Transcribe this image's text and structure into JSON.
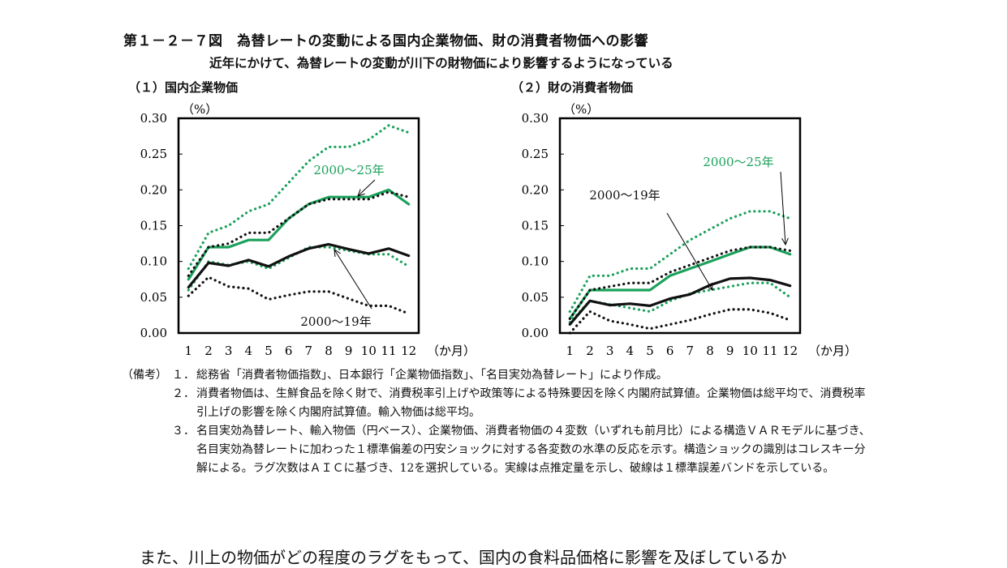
{
  "figure": {
    "title": "第１－２－７図　為替レートの変動による国内企業物価、財の消費者物価への影響",
    "subtitle": "近年にかけて、為替レートの変動が川下の財物価により影響するようになっている"
  },
  "colors": {
    "green": "#1aa05a",
    "black": "#111111"
  },
  "chart_data": [
    {
      "type": "line",
      "panel_title": "（１）国内企業物価",
      "y_unit": "（%）",
      "x_unit": "（か月）",
      "x": [
        1,
        2,
        3,
        4,
        5,
        6,
        7,
        8,
        9,
        10,
        11,
        12
      ],
      "ylim": [
        0,
        0.3
      ],
      "yticks": [
        "0.00",
        "0.05",
        "0.10",
        "0.15",
        "0.20",
        "0.25",
        "0.30"
      ],
      "annotations": [
        {
          "text": "2000～25年",
          "color": "green"
        },
        {
          "text": "2000～19年",
          "color": "black"
        }
      ],
      "series": [
        {
          "period": "2000～25年",
          "kind": "point",
          "color": "green",
          "style": "solid",
          "values": [
            0.075,
            0.12,
            0.12,
            0.13,
            0.13,
            0.16,
            0.18,
            0.19,
            0.19,
            0.19,
            0.2,
            0.18
          ]
        },
        {
          "period": "2000～25年",
          "kind": "upper",
          "color": "green",
          "style": "dotted",
          "values": [
            0.09,
            0.14,
            0.15,
            0.17,
            0.18,
            0.21,
            0.24,
            0.26,
            0.26,
            0.27,
            0.29,
            0.28
          ]
        },
        {
          "period": "2000～25年",
          "kind": "lower",
          "color": "green",
          "style": "dotted",
          "values": [
            0.06,
            0.1,
            0.095,
            0.1,
            0.09,
            0.105,
            0.12,
            0.12,
            0.115,
            0.11,
            0.11,
            0.093
          ]
        },
        {
          "period": "2000～19年",
          "kind": "point",
          "color": "black",
          "style": "solid",
          "values": [
            0.064,
            0.098,
            0.094,
            0.102,
            0.093,
            0.107,
            0.118,
            0.124,
            0.117,
            0.111,
            0.118,
            0.108
          ]
        },
        {
          "period": "2000～19年",
          "kind": "upper",
          "color": "black",
          "style": "dotted",
          "values": [
            0.08,
            0.12,
            0.125,
            0.14,
            0.14,
            0.16,
            0.18,
            0.187,
            0.187,
            0.187,
            0.197,
            0.19
          ]
        },
        {
          "period": "2000～19年",
          "kind": "lower",
          "color": "black",
          "style": "dotted",
          "values": [
            0.052,
            0.078,
            0.065,
            0.062,
            0.047,
            0.053,
            0.058,
            0.058,
            0.048,
            0.038,
            0.038,
            0.027
          ]
        }
      ]
    },
    {
      "type": "line",
      "panel_title": "（２）財の消費者物価",
      "y_unit": "（%）",
      "x_unit": "（か月）",
      "x": [
        1,
        2,
        3,
        4,
        5,
        6,
        7,
        8,
        9,
        10,
        11,
        12
      ],
      "ylim": [
        0,
        0.3
      ],
      "yticks": [
        "0.00",
        "0.05",
        "0.10",
        "0.15",
        "0.20",
        "0.25",
        "0.30"
      ],
      "annotations": [
        {
          "text": "2000～25年",
          "color": "green"
        },
        {
          "text": "2000～19年",
          "color": "black"
        }
      ],
      "series": [
        {
          "period": "2000～25年",
          "kind": "point",
          "color": "green",
          "style": "solid",
          "values": [
            0.02,
            0.06,
            0.06,
            0.06,
            0.06,
            0.08,
            0.09,
            0.1,
            0.11,
            0.12,
            0.12,
            0.11
          ]
        },
        {
          "period": "2000～25年",
          "kind": "upper",
          "color": "green",
          "style": "dotted",
          "values": [
            0.03,
            0.08,
            0.08,
            0.09,
            0.09,
            0.11,
            0.13,
            0.145,
            0.16,
            0.17,
            0.17,
            0.16
          ]
        },
        {
          "period": "2000～25年",
          "kind": "lower",
          "color": "green",
          "style": "dotted",
          "values": [
            0.015,
            0.045,
            0.04,
            0.035,
            0.03,
            0.045,
            0.055,
            0.06,
            0.065,
            0.07,
            0.07,
            0.05
          ]
        },
        {
          "period": "2000～19年",
          "kind": "point",
          "color": "black",
          "style": "solid",
          "values": [
            0.012,
            0.045,
            0.039,
            0.041,
            0.038,
            0.048,
            0.054,
            0.067,
            0.076,
            0.077,
            0.074,
            0.066
          ]
        },
        {
          "period": "2000～19年",
          "kind": "upper",
          "color": "black",
          "style": "dotted",
          "values": [
            0.02,
            0.06,
            0.065,
            0.07,
            0.07,
            0.085,
            0.095,
            0.105,
            0.115,
            0.12,
            0.12,
            0.115
          ]
        },
        {
          "period": "2000～19年",
          "kind": "lower",
          "color": "black",
          "style": "dotted",
          "values": [
            0.0,
            0.03,
            0.017,
            0.012,
            0.006,
            0.012,
            0.018,
            0.026,
            0.033,
            0.033,
            0.028,
            0.018
          ]
        }
      ]
    }
  ],
  "notes": {
    "head": "（備考）",
    "items": [
      {
        "num": "１．",
        "text": "総務省「消費者物価指数」、日本銀行「企業物価指数」、「名目実効為替レート」により作成。"
      },
      {
        "num": "２．",
        "text": "消費者物価は、生鮮食品を除く財で、消費税率引上げや政策等による特殊要因を除く内閣府試算値。企業物価は総平均で、消費税率引上げの影響を除く内閣府試算値。輸入物価は総平均。"
      },
      {
        "num": "３．",
        "text": "名目実効為替レート、輸入物価（円ベース）、企業物価、消費者物価の４変数（いずれも前月比）による構造ＶＡＲモデルに基づき、名目実効為替レートに加わった１標準偏差の円安ショックに対する各変数の水準の反応を示す。構造ショックの識別はコレスキー分解による。ラグ次数はＡＩＣに基づき、12を選択している。実線は点推定量を示し、破線は１標準誤差バンドを示している。"
      }
    ]
  },
  "body_text": "また、川上の物価がどの程度のラグをもって、国内の食料品価格に影響を及ぼしているか"
}
